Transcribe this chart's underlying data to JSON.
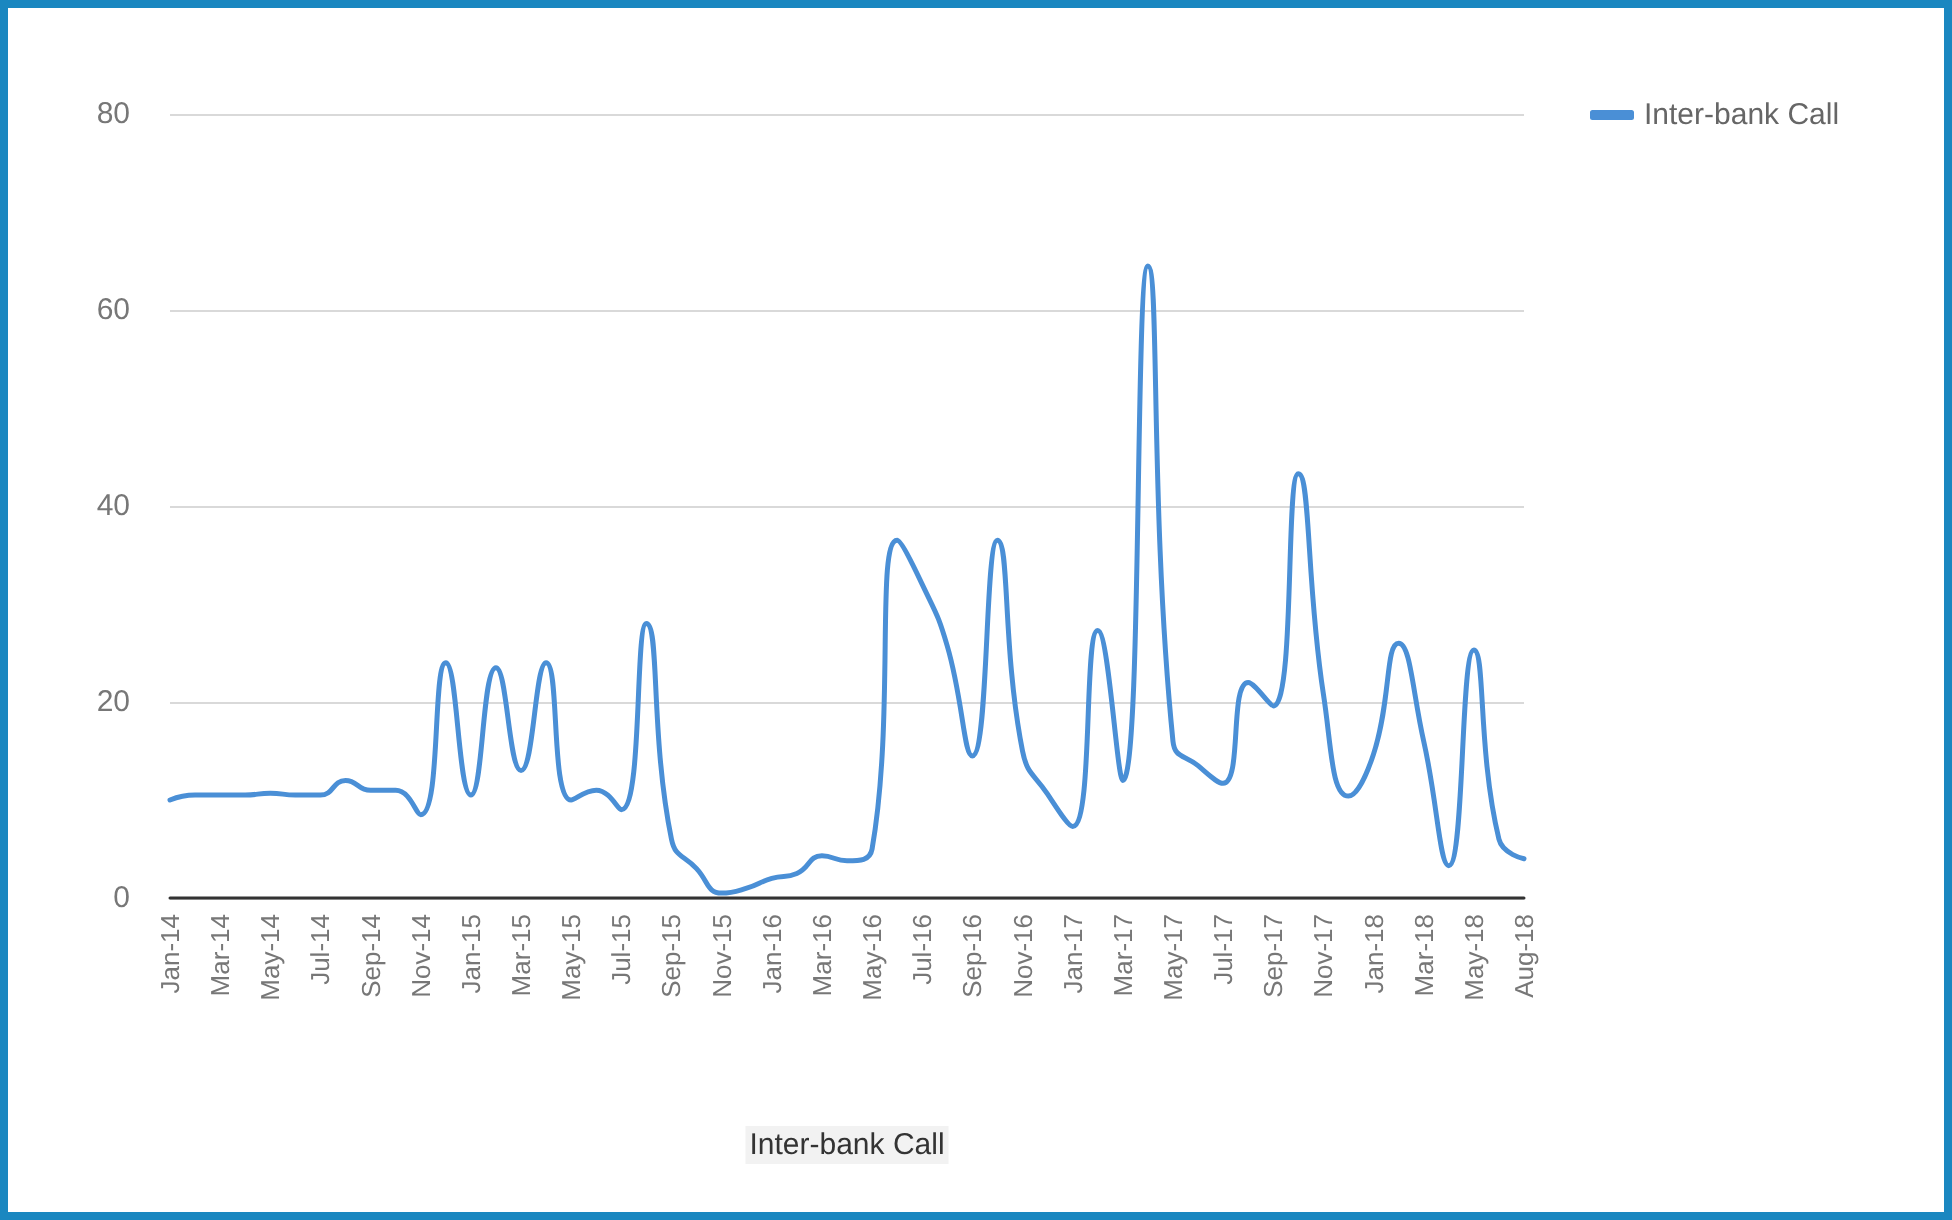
{
  "chart_data": {
    "type": "line",
    "xlabel": "Inter-bank Call",
    "categories": [
      "Jan-14",
      null,
      "Mar-14",
      null,
      "May-14",
      null,
      "Jul-14",
      null,
      "Sep-14",
      null,
      "Nov-14",
      null,
      "Jan-15",
      null,
      "Mar-15",
      null,
      "May-15",
      null,
      "Jul-15",
      null,
      "Sep-15",
      null,
      "Nov-15",
      null,
      "Jan-16",
      null,
      "Mar-16",
      null,
      "May-16",
      null,
      "Jul-16",
      null,
      "Sep-16",
      null,
      "Nov-16",
      null,
      "Jan-17",
      null,
      "Mar-17",
      null,
      "May-17",
      null,
      "Jul-17",
      null,
      "Sep-17",
      null,
      "Nov-17",
      null,
      "Jan-18",
      null,
      "Mar-18",
      null,
      "May-18",
      null,
      "Aug-18"
    ],
    "series": [
      {
        "name": "Inter-bank Call",
        "color": "#4a8fd6",
        "values": [
          10,
          10.5,
          10.5,
          10.5,
          10.7,
          10.5,
          10.5,
          12,
          11,
          11,
          8.5,
          24,
          10.5,
          23.5,
          13,
          24,
          10,
          11,
          9,
          28,
          6,
          3,
          0.5,
          1,
          2,
          2.5,
          4.3,
          3.8,
          5,
          36.5,
          32,
          25.7,
          14.5,
          36.5,
          15,
          10.6,
          7.3,
          27.3,
          12,
          64.5,
          16,
          13.5,
          11.7,
          22,
          19.6,
          43.3,
          20.8,
          10.4,
          14.7,
          26,
          16,
          3.3,
          25.3,
          6,
          4
        ]
      }
    ],
    "ylim": [
      0,
      80
    ],
    "yticks": [
      0,
      20,
      40,
      60,
      80
    ],
    "grid": "y",
    "legend": "top right",
    "marker": "none",
    "line_style": "solid"
  }
}
